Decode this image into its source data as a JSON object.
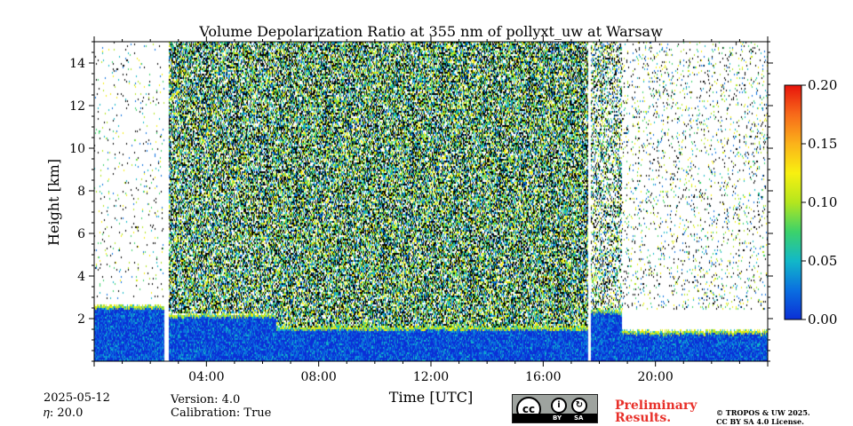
{
  "chart_data": {
    "type": "heatmap",
    "title": "Volume Depolarization Ratio at 355 nm of pollyxt_uw at Warsaw",
    "xlabel": "Time [UTC]",
    "ylabel": "Height [km]",
    "xlim_hours": [
      0,
      24
    ],
    "ylim_km": [
      0,
      15
    ],
    "xticks": [
      {
        "value": 4,
        "label": "04:00"
      },
      {
        "value": 8,
        "label": "08:00"
      },
      {
        "value": 12,
        "label": "12:00"
      },
      {
        "value": 16,
        "label": "16:00"
      },
      {
        "value": 20,
        "label": "20:00"
      }
    ],
    "yticks": [
      {
        "value": 2,
        "label": "2"
      },
      {
        "value": 4,
        "label": "4"
      },
      {
        "value": 6,
        "label": "6"
      },
      {
        "value": 8,
        "label": "8"
      },
      {
        "value": 10,
        "label": "10"
      },
      {
        "value": 12,
        "label": "12"
      },
      {
        "value": 14,
        "label": "14"
      }
    ],
    "colorbar": {
      "min": 0.0,
      "max": 0.2,
      "ticks": [
        {
          "value": 0.0,
          "label": "0.00"
        },
        {
          "value": 0.05,
          "label": "0.05"
        },
        {
          "value": 0.1,
          "label": "0.10"
        },
        {
          "value": 0.15,
          "label": "0.15"
        },
        {
          "value": 0.2,
          "label": "0.20"
        }
      ],
      "colors": [
        "#0b2fd6",
        "#0a6fe0",
        "#12b8c8",
        "#3cd26a",
        "#b4e61e",
        "#f8f010",
        "#fbb21a",
        "#f76a1a",
        "#e8140c"
      ]
    },
    "data_gaps_hours": [
      {
        "start": 2.5,
        "end": 2.65
      },
      {
        "start": 17.6,
        "end": 17.7
      }
    ],
    "segments": [
      {
        "start": 0.0,
        "end": 2.5,
        "ml_top_km": 2.5,
        "noise_from_km": 3.0,
        "noise_density": 0.04
      },
      {
        "start": 2.65,
        "end": 6.5,
        "ml_top_km": 2.1,
        "noise_from_km": 2.3,
        "noise_density": 0.82
      },
      {
        "start": 6.5,
        "end": 17.6,
        "ml_top_km": 1.5,
        "noise_from_km": 1.6,
        "noise_density": 0.86
      },
      {
        "start": 17.7,
        "end": 18.8,
        "ml_top_km": 2.3,
        "noise_from_km": 2.5,
        "noise_density": 0.5
      },
      {
        "start": 18.8,
        "end": 24.0,
        "ml_top_km": 1.3,
        "noise_from_km": 2.5,
        "noise_density": 0.1
      }
    ]
  },
  "footer": {
    "date": "2025-05-12",
    "eta": "𝜂: 20.0",
    "version": "Version: 4.0",
    "calibration": "Calibration: True",
    "preliminary_line1": "Preliminary",
    "preliminary_line2": "Results.",
    "license_line1": "© TROPOS & UW 2025.",
    "license_line2": "CC BY SA 4.0 License.",
    "cc_badge": {
      "by": "BY",
      "sa": "SA"
    }
  }
}
